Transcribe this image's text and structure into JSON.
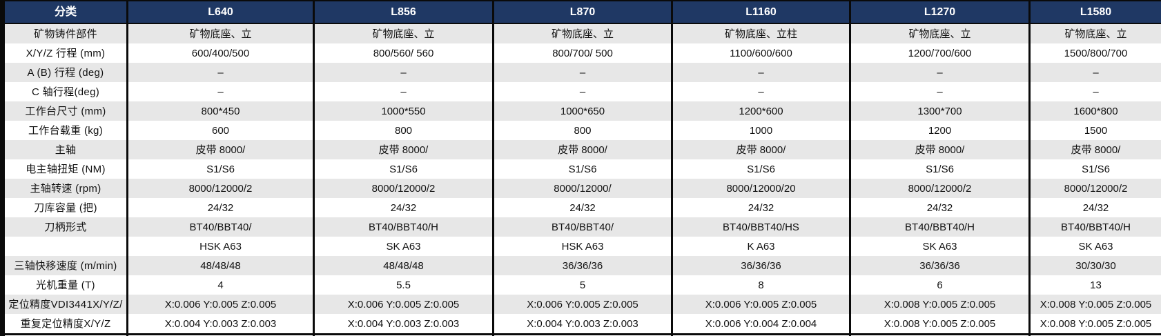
{
  "colors": {
    "header_bg": "#1f3864",
    "header_text": "#ffffff",
    "stripe_bg": "#e7e7e7",
    "row_bg": "#ffffff",
    "border": "#0a0a0a"
  },
  "table": {
    "columns": [
      "分类",
      "L640",
      "L856",
      "L870",
      "L1160",
      "L1270",
      "L1580"
    ],
    "rows": [
      {
        "label": "矿物铸件部件",
        "values": [
          "矿物底座、立",
          "矿物底座、立",
          "矿物底座、立",
          "矿物底座、立柱",
          "矿物底座、立",
          "矿物底座、立"
        ]
      },
      {
        "label": "X/Y/Z 行程 (mm)",
        "values": [
          "600/400/500",
          "800/560/ 560",
          "800/700/ 500",
          "1100/600/600",
          "1200/700/600",
          "1500/800/700"
        ]
      },
      {
        "label": "A (B) 行程 (deg)",
        "values": [
          "–",
          "–",
          "–",
          "–",
          "–",
          "–"
        ]
      },
      {
        "label": "C 轴行程(deg)",
        "values": [
          "–",
          "–",
          "–",
          "–",
          "–",
          "–"
        ]
      },
      {
        "label": "工作台尺寸 (mm)",
        "values": [
          "800*450",
          "1000*550",
          "1000*650",
          "1200*600",
          "1300*700",
          "1600*800"
        ]
      },
      {
        "label": "工作台载重 (kg)",
        "values": [
          "600",
          "800",
          "800",
          "1000",
          "1200",
          "1500"
        ]
      },
      {
        "label": "主轴",
        "values": [
          "皮带 8000/",
          "皮带 8000/",
          "皮带 8000/",
          "皮带 8000/",
          "皮带 8000/",
          "皮带 8000/"
        ]
      },
      {
        "label": "电主轴扭矩 (NM)",
        "values": [
          "S1/S6",
          "S1/S6",
          "S1/S6",
          "S1/S6",
          "S1/S6",
          "S1/S6"
        ]
      },
      {
        "label": "主轴转速 (rpm)",
        "values": [
          "8000/12000/2",
          "8000/12000/2",
          "8000/12000/",
          "8000/12000/20",
          "8000/12000/2",
          "8000/12000/2"
        ]
      },
      {
        "label": "刀库容量 (把)",
        "values": [
          "24/32",
          "24/32",
          "24/32",
          "24/32",
          "24/32",
          "24/32"
        ]
      },
      {
        "label": "刀柄形式",
        "values": [
          "BT40/BBT40/",
          "BT40/BBT40/H",
          "BT40/BBT40/",
          "BT40/BBT40/HS",
          "BT40/BBT40/H",
          "BT40/BBT40/H"
        ]
      },
      {
        "label": "",
        "values": [
          "HSK A63",
          "SK A63",
          "HSK A63",
          "K A63",
          "SK A63",
          "SK A63"
        ]
      },
      {
        "label": "三轴快移速度 (m/min)",
        "values": [
          "48/48/48",
          "48/48/48",
          "36/36/36",
          "36/36/36",
          "36/36/36",
          "30/30/30"
        ]
      },
      {
        "label": "光机重量 (T)",
        "values": [
          "4",
          "5.5",
          "5",
          "8",
          "6",
          "13"
        ]
      },
      {
        "label": "定位精度VDI3441X/Y/Z/",
        "values": [
          "X:0.006 Y:0.005 Z:0.005",
          "X:0.006 Y:0.005 Z:0.005",
          "X:0.006 Y:0.005 Z:0.005",
          "X:0.006 Y:0.005 Z:0.005",
          "X:0.008 Y:0.005 Z:0.005",
          "X:0.008 Y:0.005 Z:0.005"
        ]
      },
      {
        "label": "重复定位精度X/Y/Z",
        "values": [
          "X:0.004 Y:0.003 Z:0.003",
          "X:0.004 Y:0.003 Z:0.003",
          "X:0.004 Y:0.003 Z:0.003",
          "X:0.006 Y:0.004 Z:0.004",
          "X:0.008 Y:0.005 Z:0.005",
          "X:0.008 Y:0.005 Z:0.005"
        ]
      }
    ]
  }
}
